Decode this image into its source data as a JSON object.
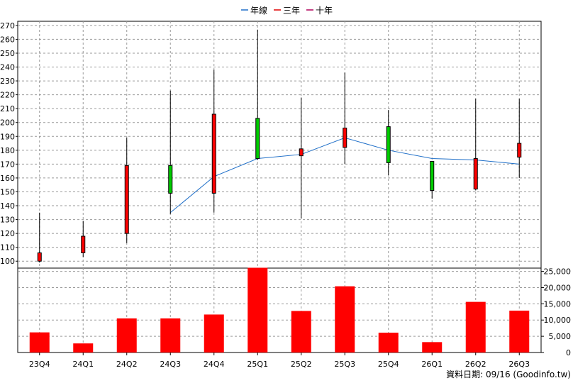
{
  "legend": {
    "items": [
      {
        "label": "年線",
        "color": "#1f6fc8"
      },
      {
        "label": "三年",
        "color": "#e00000"
      },
      {
        "label": "十年",
        "color": "#b0005a"
      }
    ]
  },
  "footer": {
    "text": "資料日期: 09/16 (Goodinfo.tw)"
  },
  "chart_data": {
    "type": "candlestick+bar",
    "categories": [
      "23Q4",
      "24Q1",
      "24Q2",
      "24Q3",
      "24Q4",
      "25Q1",
      "25Q2",
      "25Q3",
      "25Q4",
      "26Q1",
      "26Q2",
      "26Q3"
    ],
    "price_axis": {
      "ylim": [
        95,
        273
      ],
      "ticks": [
        100,
        110,
        120,
        130,
        140,
        150,
        160,
        170,
        180,
        190,
        200,
        210,
        220,
        230,
        240,
        250,
        260,
        270
      ]
    },
    "volume_axis": {
      "ylim": [
        0,
        26000
      ],
      "ticks": [
        0,
        5000,
        10000,
        15000,
        20000,
        25000
      ],
      "tick_labels": [
        "0",
        "5,000",
        "10,000",
        "15,000",
        "20,000",
        "25,000"
      ]
    },
    "candles": [
      {
        "open": 100,
        "close": 106,
        "high": 135,
        "low": 99,
        "color": "red"
      },
      {
        "open": 106,
        "close": 118,
        "high": 129,
        "low": 103,
        "color": "red"
      },
      {
        "open": 120,
        "close": 169,
        "high": 189,
        "low": 113,
        "color": "red"
      },
      {
        "open": 169,
        "close": 149,
        "high": 223,
        "low": 134,
        "color": "green"
      },
      {
        "open": 149,
        "close": 206,
        "high": 238,
        "low": 135,
        "color": "red"
      },
      {
        "open": 203,
        "close": 174,
        "high": 267,
        "low": 173,
        "color": "green"
      },
      {
        "open": 176,
        "close": 181,
        "high": 218,
        "low": 131,
        "color": "red"
      },
      {
        "open": 182,
        "close": 196,
        "high": 236,
        "low": 170,
        "color": "red"
      },
      {
        "open": 197,
        "close": 171,
        "high": 209,
        "low": 162,
        "color": "green"
      },
      {
        "open": 172,
        "close": 151,
        "high": 172,
        "low": 145,
        "color": "green"
      },
      {
        "open": 152,
        "close": 174,
        "high": 217,
        "low": 151,
        "color": "red"
      },
      {
        "open": 175,
        "close": 185,
        "high": 217,
        "low": 160,
        "color": "red"
      }
    ],
    "series": [
      {
        "name": "年線",
        "values": [
          null,
          null,
          null,
          135,
          161,
          174,
          177,
          189,
          180,
          174,
          173,
          170
        ]
      }
    ],
    "volume": [
      6200,
      2800,
      10500,
      10500,
      11700,
      26100,
      12800,
      20400,
      6100,
      3200,
      15600,
      12900
    ],
    "grid": true
  }
}
